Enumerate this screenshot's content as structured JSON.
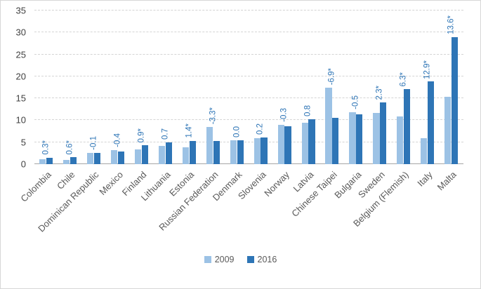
{
  "chart_data": {
    "type": "bar",
    "title": "",
    "xlabel": "",
    "ylabel": "",
    "ylim": [
      0,
      35
    ],
    "ytick_step": 5,
    "grid": true,
    "legend_position": "bottom",
    "categories": [
      "Colombia",
      "Chile",
      "Dominican Republic",
      "Mexico",
      "Finland",
      "Lithuania",
      "Estonia",
      "Russian Federation",
      "Denmark",
      "Slovenia",
      "Norway",
      "Latvia",
      "Chinese Taipei",
      "Bulgaria",
      "Sweden",
      "Belgium (Flemish)",
      "Italy",
      "Malta"
    ],
    "series": [
      {
        "name": "2009",
        "values": [
          1.2,
          1.0,
          2.6,
          3.2,
          3.4,
          4.2,
          3.9,
          8.5,
          5.4,
          5.9,
          9.0,
          9.5,
          17.4,
          11.9,
          11.7,
          10.8,
          5.9,
          15.4
        ]
      },
      {
        "name": "2016",
        "values": [
          1.5,
          1.6,
          2.5,
          2.8,
          4.3,
          4.9,
          5.3,
          5.2,
          5.4,
          6.1,
          8.7,
          10.3,
          10.5,
          11.4,
          14.0,
          17.1,
          18.8,
          29.0
        ]
      }
    ],
    "data_labels": [
      "0.3*",
      "0.6*",
      "-0.1",
      "-0.4",
      "0.9*",
      "0.7",
      "1.4*",
      "-3.3*",
      "0.0",
      "0.2",
      "-0.3",
      "0.8",
      "-6.9*",
      "-0.5",
      "2.3*",
      "6.3*",
      "12.9*",
      "13.6*"
    ],
    "colors": {
      "series_2009": "#9cc2e5",
      "series_2016": "#2e75b6",
      "data_label_text": "#2e75b6",
      "gridline": "#d4d4d4",
      "axis_line": "#a6a6a6"
    },
    "legend": [
      "2009",
      "2016"
    ]
  }
}
